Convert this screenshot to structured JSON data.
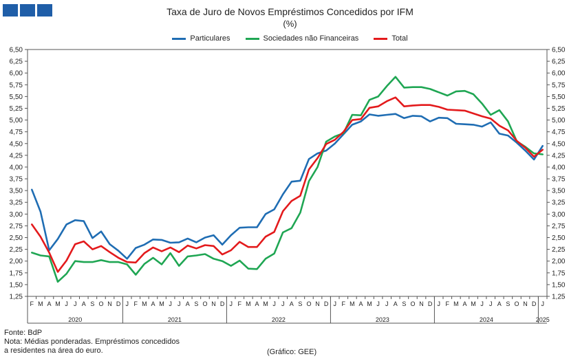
{
  "header": {
    "title": "Taxa de Juro de Novos Empréstimos  Concedidos por IFM",
    "subtitle": "(%)"
  },
  "footer": {
    "source": "Fonte: BdP",
    "note_line1": "Nota: Médias ponderadas. Empréstimos concedidos",
    "note_line2": "a residentes na área do euro.",
    "credit": "(Gráfico: GEE)"
  },
  "chart_data": {
    "type": "line",
    "title": "Taxa de Juro de Novos Empréstimos  Concedidos por IFM",
    "subtitle": "(%)",
    "ylim": [
      1.25,
      6.5
    ],
    "yticks": [
      "1,25",
      "1,50",
      "1,75",
      "2,00",
      "2,25",
      "2,50",
      "2,75",
      "3,00",
      "3,25",
      "3,50",
      "3,75",
      "4,00",
      "4,25",
      "4,50",
      "4,75",
      "5,00",
      "5,25",
      "5,50",
      "5,75",
      "6,00",
      "6,25",
      "6,50"
    ],
    "grid": false,
    "legend_position": "top",
    "month_labels": [
      "F",
      "M",
      "A",
      "M",
      "J",
      "J",
      "A",
      "S",
      "O",
      "N",
      "D",
      "J",
      "F",
      "M",
      "A",
      "M",
      "J",
      "J",
      "A",
      "S",
      "O",
      "N",
      "D",
      "J",
      "F",
      "M",
      "A",
      "M",
      "J",
      "J",
      "A",
      "S",
      "O",
      "N",
      "D",
      "J",
      "F",
      "M",
      "A",
      "M",
      "J",
      "J",
      "A",
      "S",
      "O",
      "N",
      "D",
      "J",
      "F",
      "M",
      "A",
      "M",
      "J",
      "J",
      "A",
      "S",
      "O",
      "N",
      "D",
      "J"
    ],
    "years": [
      {
        "label": "2020",
        "start": 0,
        "end": 11
      },
      {
        "label": "2021",
        "start": 11,
        "end": 23
      },
      {
        "label": "2022",
        "start": 23,
        "end": 35
      },
      {
        "label": "2023",
        "start": 35,
        "end": 47
      },
      {
        "label": "2024",
        "start": 47,
        "end": 59
      },
      {
        "label": "2025",
        "start": 59,
        "end": 60
      }
    ],
    "series": [
      {
        "name": "Particulares",
        "color": "#1f6db3",
        "values": [
          3.52,
          3.05,
          2.23,
          2.47,
          2.78,
          2.87,
          2.85,
          2.49,
          2.63,
          2.36,
          2.22,
          2.05,
          2.28,
          2.35,
          2.46,
          2.45,
          2.39,
          2.4,
          2.48,
          2.4,
          2.5,
          2.55,
          2.35,
          2.55,
          2.71,
          2.72,
          2.72,
          3.0,
          3.1,
          3.42,
          3.69,
          3.71,
          4.17,
          4.29,
          4.35,
          4.5,
          4.7,
          4.9,
          4.97,
          5.12,
          5.09,
          5.11,
          5.13,
          5.04,
          5.09,
          5.08,
          4.97,
          5.05,
          5.04,
          4.92,
          4.91,
          4.9,
          4.86,
          4.95,
          4.71,
          4.67,
          4.52,
          4.35,
          4.16,
          4.45
        ]
      },
      {
        "name": "Sociedades não Financeiras",
        "color": "#1fa653",
        "values": [
          2.18,
          2.12,
          2.1,
          1.56,
          1.73,
          2.0,
          1.98,
          1.98,
          2.02,
          1.98,
          1.98,
          1.93,
          1.71,
          1.94,
          2.07,
          1.93,
          2.17,
          1.9,
          2.1,
          2.12,
          2.15,
          2.05,
          2.0,
          1.9,
          2.01,
          1.84,
          1.83,
          2.05,
          2.16,
          2.61,
          2.7,
          3.03,
          3.7,
          4.0,
          4.54,
          4.65,
          4.72,
          5.11,
          5.1,
          5.43,
          5.5,
          5.72,
          5.92,
          5.69,
          5.7,
          5.7,
          5.66,
          5.59,
          5.52,
          5.61,
          5.62,
          5.55,
          5.35,
          5.11,
          5.21,
          4.97,
          4.55,
          4.43,
          4.29,
          4.27
        ]
      },
      {
        "name": "Total",
        "color": "#e31a1c",
        "values": [
          2.78,
          2.52,
          2.18,
          1.77,
          2.01,
          2.36,
          2.42,
          2.25,
          2.32,
          2.19,
          2.07,
          1.98,
          1.97,
          2.17,
          2.29,
          2.21,
          2.29,
          2.19,
          2.33,
          2.27,
          2.34,
          2.32,
          2.14,
          2.23,
          2.41,
          2.3,
          2.3,
          2.52,
          2.62,
          3.06,
          3.28,
          3.39,
          3.95,
          4.19,
          4.49,
          4.58,
          4.75,
          5.0,
          5.02,
          5.26,
          5.29,
          5.4,
          5.48,
          5.29,
          5.31,
          5.32,
          5.32,
          5.28,
          5.22,
          5.21,
          5.2,
          5.14,
          5.08,
          5.03,
          4.88,
          4.78,
          4.56,
          4.41,
          4.22,
          4.37
        ]
      }
    ]
  }
}
